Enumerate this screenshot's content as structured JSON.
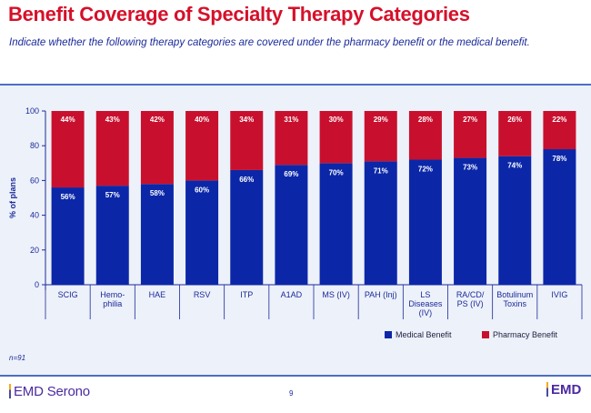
{
  "header": {
    "title": "Benefit Coverage of Specialty Therapy Categories",
    "subtitle": "Indicate whether the following therapy categories are covered under the pharmacy benefit or the medical benefit."
  },
  "footer": {
    "note": "n=91",
    "brand_left": "EMD Serono",
    "page_number": "9",
    "brand_right": "EMD"
  },
  "colors": {
    "medical": "#0b27a8",
    "pharmacy": "#c8102e",
    "title": "#d6102a",
    "text": "#1a2a9a"
  },
  "chart_data": {
    "type": "bar",
    "stacked": true,
    "categories": [
      "SCIG",
      "Hemo-\nphilia",
      "HAE",
      "RSV",
      "ITP",
      "A1AD",
      "MS (IV)",
      "PAH (Inj)",
      "LS\nDiseases\n(IV)",
      "RA/CD/\nPS (IV)",
      "Botulinum\nToxins",
      "IVIG"
    ],
    "series": [
      {
        "name": "Medical Benefit",
        "values": [
          56,
          57,
          58,
          60,
          66,
          69,
          70,
          71,
          72,
          73,
          74,
          78
        ],
        "labels": [
          "56%",
          "57%",
          "58%",
          "60%",
          "66%",
          "69%",
          "70%",
          "71%",
          "72%",
          "73%",
          "74%",
          "78%"
        ]
      },
      {
        "name": "Pharmacy Benefit",
        "values": [
          44,
          43,
          42,
          40,
          34,
          31,
          30,
          29,
          28,
          27,
          26,
          22
        ],
        "labels": [
          "44%",
          "43%",
          "42%",
          "40%",
          "34%",
          "31%",
          "30%",
          "29%",
          "28%",
          "27%",
          "26%",
          "22%"
        ]
      }
    ],
    "ylabel": "% of plans",
    "ylim": [
      0,
      100
    ],
    "yticks": [
      "0",
      "20",
      "40",
      "60",
      "80",
      "100"
    ],
    "grid": false,
    "legend_position": "bottom-right"
  }
}
